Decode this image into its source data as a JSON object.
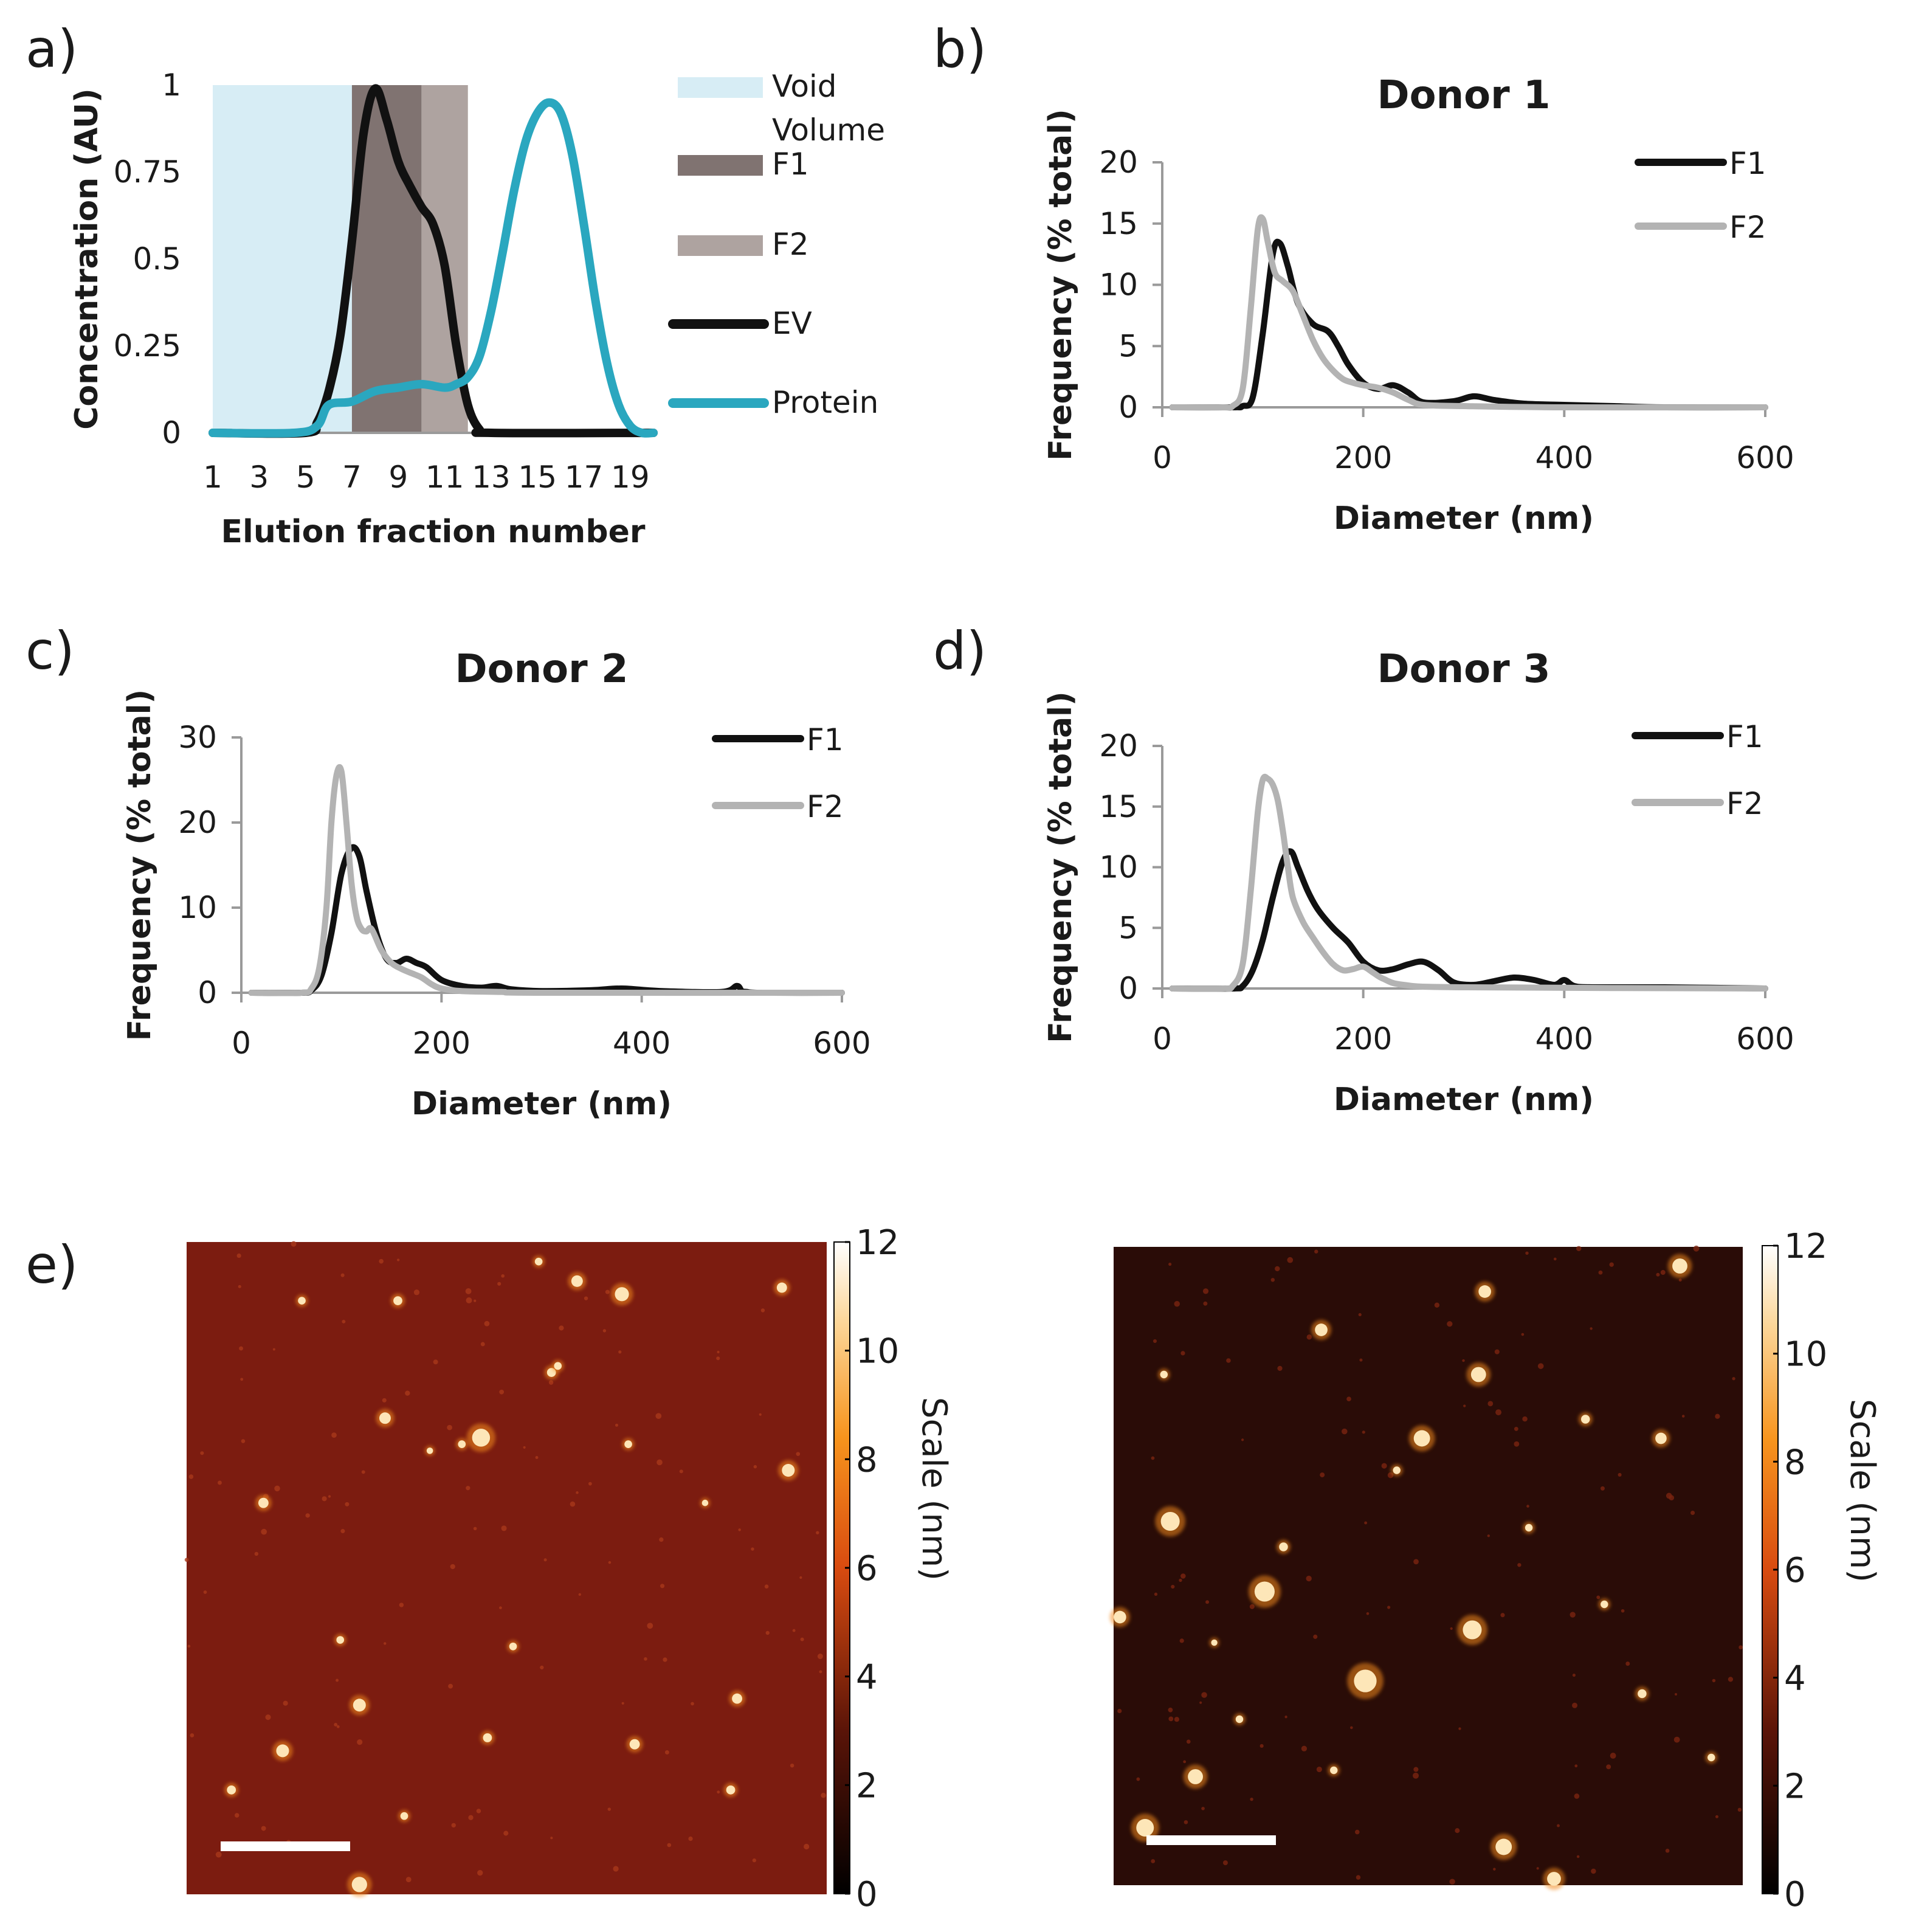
{
  "colors": {
    "void": "#d7edf5",
    "f1": "#807371",
    "f2": "#aea3a0",
    "ev": "#111111",
    "protein": "#2aa7bf",
    "donor_f1": "#111111",
    "donor_f2": "#b3b3b3"
  },
  "panel_labels": [
    "a)",
    "b)",
    "c)",
    "d)",
    "e)"
  ],
  "chart_data": [
    {
      "id": "a",
      "type": "line",
      "title": "",
      "xlabel": "Elution fraction number",
      "ylabel": "Concentration (AU)",
      "xlim": [
        1,
        20
      ],
      "ylim": [
        0,
        1
      ],
      "xticks": [
        "1",
        "3",
        "5",
        "7",
        "9",
        "11",
        "13",
        "15",
        "17",
        "19"
      ],
      "xtick_values": [
        1,
        3,
        5,
        7,
        9,
        11,
        13,
        15,
        17,
        19
      ],
      "yticks": [
        "0",
        "0.25",
        "0.5",
        "0.75",
        "1"
      ],
      "ytick_values": [
        0,
        0.25,
        0.5,
        0.75,
        1
      ],
      "bands": [
        {
          "name": "Void Volume",
          "from": 1,
          "to": 7
        },
        {
          "name": "F1",
          "from": 7,
          "to": 10
        },
        {
          "name": "F2",
          "from": 10,
          "to": 12
        }
      ],
      "series": [
        {
          "name": "EV",
          "x": [
            1,
            5,
            5.5,
            6,
            6.5,
            7,
            7.5,
            8,
            8.5,
            9,
            9.5,
            10,
            10.5,
            11,
            11.5,
            12,
            12.5,
            13,
            20
          ],
          "values": [
            0,
            0,
            0.03,
            0.12,
            0.28,
            0.55,
            0.86,
            0.99,
            0.9,
            0.78,
            0.71,
            0.65,
            0.6,
            0.48,
            0.25,
            0.08,
            0.01,
            0,
            0
          ]
        },
        {
          "name": "Protein",
          "x": [
            1,
            4.5,
            5.5,
            6,
            7,
            8,
            9,
            10,
            11,
            11.5,
            12,
            12.5,
            13,
            13.5,
            14,
            14.5,
            15,
            15.5,
            16,
            16.5,
            17,
            17.5,
            18,
            18.5,
            19,
            19.5,
            20
          ],
          "values": [
            0,
            0,
            0.02,
            0.08,
            0.09,
            0.12,
            0.13,
            0.14,
            0.13,
            0.14,
            0.16,
            0.22,
            0.35,
            0.52,
            0.7,
            0.84,
            0.92,
            0.95,
            0.92,
            0.8,
            0.6,
            0.38,
            0.2,
            0.08,
            0.02,
            0,
            0
          ]
        }
      ],
      "legend": [
        {
          "label_lines": [
            "Void",
            "Volume"
          ],
          "kind": "band",
          "ref": "void"
        },
        {
          "label_lines": [
            "F1"
          ],
          "kind": "band",
          "ref": "f1"
        },
        {
          "label_lines": [
            "F2"
          ],
          "kind": "band",
          "ref": "f2"
        },
        {
          "label_lines": [
            "EV"
          ],
          "kind": "line",
          "ref": "ev"
        },
        {
          "label_lines": [
            "Protein"
          ],
          "kind": "line",
          "ref": "protein"
        }
      ]
    },
    {
      "id": "b",
      "type": "line",
      "title": "Donor 1",
      "xlabel": "Diameter (nm)",
      "ylabel": "Frequency (% total)",
      "xlim": [
        0,
        600
      ],
      "ylim": [
        0,
        20
      ],
      "xticks": [
        "0",
        "200",
        "400",
        "600"
      ],
      "xtick_values": [
        0,
        200,
        400,
        600
      ],
      "yticks": [
        "0",
        "5",
        "10",
        "15",
        "20"
      ],
      "ytick_values": [
        0,
        5,
        10,
        15,
        20
      ],
      "series": [
        {
          "name": "F1",
          "x": [
            10,
            70,
            80,
            90,
            100,
            110,
            117,
            125,
            135,
            150,
            165,
            175,
            185,
            200,
            215,
            230,
            245,
            260,
            290,
            310,
            330,
            360,
            400,
            450,
            500,
            600
          ],
          "values": [
            0,
            0,
            0.1,
            0.8,
            6,
            12.5,
            13.4,
            11.5,
            8.5,
            6.8,
            6.2,
            5.0,
            3.5,
            2.0,
            1.5,
            1.8,
            1.2,
            0.4,
            0.5,
            0.9,
            0.6,
            0.3,
            0.2,
            0.1,
            0,
            0
          ]
        },
        {
          "name": "F2",
          "x": [
            10,
            60,
            70,
            80,
            88,
            95,
            100,
            105,
            112,
            120,
            130,
            140,
            150,
            160,
            170,
            180,
            190,
            200,
            215,
            230,
            245,
            260,
            300,
            400,
            600
          ],
          "values": [
            0,
            0,
            0.1,
            1.5,
            8,
            14.5,
            15.4,
            13.5,
            11,
            10.3,
            9.5,
            7.5,
            5.5,
            4,
            3,
            2.3,
            2,
            1.8,
            1.6,
            1.2,
            0.6,
            0.2,
            0.1,
            0,
            0
          ]
        }
      ],
      "legend": [
        {
          "label": "F1",
          "ref": "donor_f1"
        },
        {
          "label": "F2",
          "ref": "donor_f2"
        }
      ]
    },
    {
      "id": "c",
      "type": "line",
      "title": "Donor 2",
      "xlabel": "Diameter (nm)",
      "ylabel": "Frequency (% total)",
      "xlim": [
        0,
        600
      ],
      "ylim": [
        0,
        30
      ],
      "xticks": [
        "0",
        "200",
        "400",
        "600"
      ],
      "xtick_values": [
        0,
        200,
        400,
        600
      ],
      "yticks": [
        "0",
        "10",
        "20",
        "30"
      ],
      "ytick_values": [
        0,
        10,
        20,
        30
      ],
      "series": [
        {
          "name": "F1",
          "x": [
            10,
            60,
            70,
            80,
            90,
            100,
            110,
            118,
            125,
            135,
            145,
            155,
            165,
            175,
            185,
            200,
            220,
            240,
            255,
            270,
            300,
            350,
            380,
            420,
            480,
            495,
            500,
            505,
            520,
            600
          ],
          "values": [
            0,
            0,
            0.3,
            2,
            7,
            14,
            17,
            16,
            12,
            7,
            4,
            3.5,
            4,
            3.5,
            3,
            1.5,
            0.8,
            0.6,
            0.8,
            0.4,
            0.2,
            0.3,
            0.5,
            0.2,
            0.1,
            0.8,
            0.2,
            0.1,
            0,
            0
          ]
        },
        {
          "name": "F2",
          "x": [
            10,
            60,
            70,
            78,
            85,
            90,
            95,
            100,
            105,
            110,
            115,
            120,
            125,
            130,
            140,
            150,
            160,
            170,
            180,
            190,
            200,
            220,
            260,
            300,
            600
          ],
          "values": [
            0,
            0,
            0.5,
            3,
            10,
            20,
            25.5,
            26,
            20,
            13,
            9,
            7.5,
            7.2,
            7.5,
            5,
            3.5,
            2.8,
            2.3,
            1.8,
            1,
            0.5,
            0.2,
            0.1,
            0,
            0
          ]
        }
      ],
      "legend": [
        {
          "label": "F1",
          "ref": "donor_f1"
        },
        {
          "label": "F2",
          "ref": "donor_f2"
        }
      ]
    },
    {
      "id": "d",
      "type": "line",
      "title": "Donor 3",
      "xlabel": "Diameter (nm)",
      "ylabel": "Frequency (% total)",
      "xlim": [
        0,
        600
      ],
      "ylim": [
        0,
        20
      ],
      "xticks": [
        "0",
        "200",
        "400",
        "600"
      ],
      "xtick_values": [
        0,
        200,
        400,
        600
      ],
      "yticks": [
        "0",
        "5",
        "10",
        "15",
        "20"
      ],
      "ytick_values": [
        0,
        5,
        10,
        15,
        20
      ],
      "series": [
        {
          "name": "F1",
          "x": [
            10,
            70,
            80,
            90,
            100,
            110,
            120,
            128,
            135,
            145,
            155,
            170,
            185,
            200,
            215,
            230,
            245,
            260,
            275,
            290,
            310,
            330,
            350,
            370,
            390,
            400,
            410,
            430,
            500,
            600
          ],
          "values": [
            0,
            0,
            0.2,
            1.5,
            4,
            7.5,
            10.5,
            11.3,
            10,
            8,
            6.5,
            5,
            3.8,
            2.2,
            1.5,
            1.6,
            2,
            2.2,
            1.5,
            0.5,
            0.3,
            0.6,
            0.9,
            0.7,
            0.3,
            0.7,
            0.2,
            0.1,
            0.1,
            0
          ]
        },
        {
          "name": "F2",
          "x": [
            10,
            60,
            70,
            80,
            88,
            95,
            100,
            105,
            110,
            115,
            120,
            125,
            130,
            140,
            150,
            160,
            170,
            180,
            190,
            200,
            210,
            220,
            240,
            300,
            600
          ],
          "values": [
            0,
            0,
            0.2,
            2,
            8,
            14.5,
            17.2,
            17.3,
            16.8,
            15.5,
            13,
            10,
            7.5,
            5.5,
            4.2,
            3,
            2,
            1.5,
            1.6,
            1.8,
            1.3,
            0.8,
            0.3,
            0.1,
            0
          ]
        }
      ],
      "legend": [
        {
          "label": "F1",
          "ref": "donor_f1"
        },
        {
          "label": "F2",
          "ref": "donor_f2"
        }
      ]
    }
  ],
  "afm": {
    "colorbar_ticks": [
      "0",
      "2",
      "4",
      "6",
      "8",
      "10",
      "12"
    ],
    "colorbar_range": [
      0,
      12
    ],
    "colorbar_label": "Scale (nm)",
    "images": [
      {
        "id": "afm-left",
        "background": "#7c1c10",
        "particles": [
          {
            "u": 0.18,
            "v": 0.09,
            "r": 0.006
          },
          {
            "u": 0.33,
            "v": 0.09,
            "r": 0.007
          },
          {
            "u": 0.61,
            "v": 0.06,
            "r": 0.009
          },
          {
            "u": 0.68,
            "v": 0.08,
            "r": 0.011
          },
          {
            "u": 0.93,
            "v": 0.07,
            "r": 0.008
          },
          {
            "u": 0.55,
            "v": 0.03,
            "r": 0.006
          },
          {
            "u": 0.57,
            "v": 0.2,
            "r": 0.007
          },
          {
            "u": 0.31,
            "v": 0.27,
            "r": 0.009
          },
          {
            "u": 0.46,
            "v": 0.3,
            "r": 0.014
          },
          {
            "u": 0.43,
            "v": 0.31,
            "r": 0.006
          },
          {
            "u": 0.58,
            "v": 0.19,
            "r": 0.006
          },
          {
            "u": 0.94,
            "v": 0.35,
            "r": 0.01
          },
          {
            "u": 0.12,
            "v": 0.4,
            "r": 0.008
          },
          {
            "u": 0.69,
            "v": 0.31,
            "r": 0.006
          },
          {
            "u": 0.24,
            "v": 0.61,
            "r": 0.006
          },
          {
            "u": 0.51,
            "v": 0.62,
            "r": 0.006
          },
          {
            "u": 0.27,
            "v": 0.71,
            "r": 0.01
          },
          {
            "u": 0.86,
            "v": 0.7,
            "r": 0.008
          },
          {
            "u": 0.47,
            "v": 0.76,
            "r": 0.007
          },
          {
            "u": 0.15,
            "v": 0.78,
            "r": 0.01
          },
          {
            "u": 0.7,
            "v": 0.77,
            "r": 0.008
          },
          {
            "u": 0.07,
            "v": 0.84,
            "r": 0.007
          },
          {
            "u": 0.85,
            "v": 0.84,
            "r": 0.007
          },
          {
            "u": 0.34,
            "v": 0.88,
            "r": 0.006
          },
          {
            "u": 0.27,
            "v": 0.985,
            "r": 0.012
          },
          {
            "u": 0.81,
            "v": 0.4,
            "r": 0.005
          },
          {
            "u": 0.38,
            "v": 0.32,
            "r": 0.005
          }
        ]
      },
      {
        "id": "afm-right",
        "background": "#2a0c07",
        "particles": [
          {
            "u": 0.9,
            "v": 0.03,
            "r": 0.012
          },
          {
            "u": 0.59,
            "v": 0.07,
            "r": 0.01
          },
          {
            "u": 0.33,
            "v": 0.13,
            "r": 0.01
          },
          {
            "u": 0.58,
            "v": 0.2,
            "r": 0.012
          },
          {
            "u": 0.49,
            "v": 0.3,
            "r": 0.013
          },
          {
            "u": 0.09,
            "v": 0.43,
            "r": 0.015
          },
          {
            "u": 0.24,
            "v": 0.54,
            "r": 0.016
          },
          {
            "u": 0.01,
            "v": 0.58,
            "r": 0.01
          },
          {
            "u": 0.57,
            "v": 0.6,
            "r": 0.015
          },
          {
            "u": 0.4,
            "v": 0.68,
            "r": 0.018
          },
          {
            "u": 0.13,
            "v": 0.83,
            "r": 0.012
          },
          {
            "u": 0.05,
            "v": 0.91,
            "r": 0.014
          },
          {
            "u": 0.62,
            "v": 0.94,
            "r": 0.013
          },
          {
            "u": 0.7,
            "v": 0.99,
            "r": 0.011
          },
          {
            "u": 0.87,
            "v": 0.3,
            "r": 0.009
          },
          {
            "u": 0.75,
            "v": 0.27,
            "r": 0.007
          },
          {
            "u": 0.27,
            "v": 0.47,
            "r": 0.007
          },
          {
            "u": 0.45,
            "v": 0.35,
            "r": 0.006
          },
          {
            "u": 0.84,
            "v": 0.7,
            "r": 0.007
          },
          {
            "u": 0.35,
            "v": 0.82,
            "r": 0.006
          },
          {
            "u": 0.2,
            "v": 0.74,
            "r": 0.006
          },
          {
            "u": 0.95,
            "v": 0.8,
            "r": 0.006
          },
          {
            "u": 0.78,
            "v": 0.56,
            "r": 0.006
          },
          {
            "u": 0.08,
            "v": 0.2,
            "r": 0.006
          },
          {
            "u": 0.66,
            "v": 0.44,
            "r": 0.006
          },
          {
            "u": 0.16,
            "v": 0.62,
            "r": 0.005
          }
        ]
      }
    ]
  }
}
